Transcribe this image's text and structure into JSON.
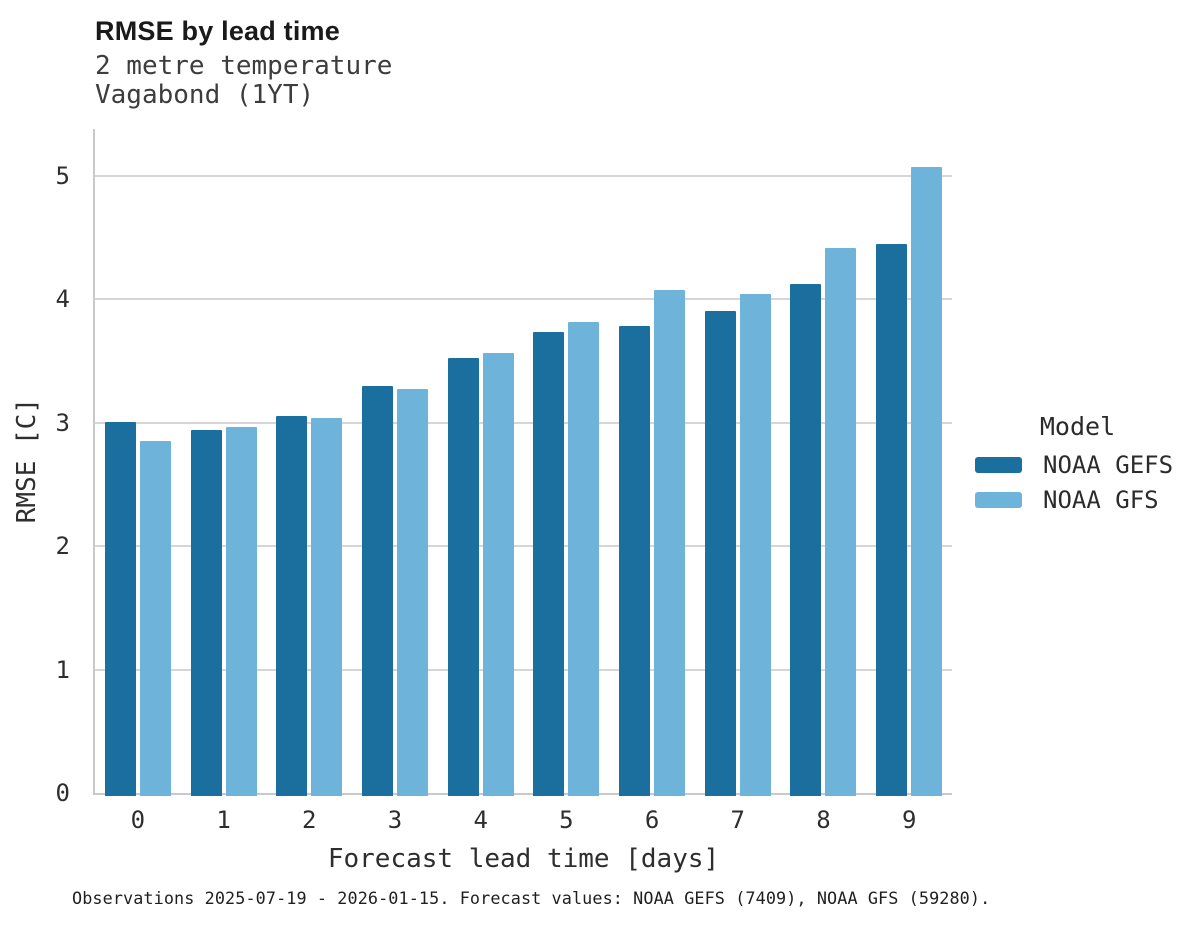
{
  "header": {
    "title": "RMSE by lead time",
    "subtitle_line1": "2 metre temperature",
    "subtitle_line2": "Vagabond (1YT)"
  },
  "chart_data": {
    "type": "bar",
    "title": "RMSE by lead time",
    "subtitle": [
      "2 metre temperature",
      "Vagabond (1YT)"
    ],
    "xlabel": "Forecast lead time [days]",
    "ylabel": "RMSE [C]",
    "categories": [
      "0",
      "1",
      "2",
      "3",
      "4",
      "5",
      "6",
      "7",
      "8",
      "9"
    ],
    "series": [
      {
        "name": "NOAA GEFS",
        "color": "#1a6f9f",
        "values": [
          3.03,
          2.97,
          3.08,
          3.32,
          3.55,
          3.76,
          3.81,
          3.93,
          4.15,
          4.47
        ]
      },
      {
        "name": "NOAA GFS",
        "color": "#6db3da",
        "values": [
          2.88,
          2.99,
          3.06,
          3.3,
          3.59,
          3.84,
          4.1,
          4.07,
          4.44,
          5.1
        ]
      }
    ],
    "ylim": [
      0,
      5.37
    ],
    "yticks": [
      "0",
      "1",
      "2",
      "3",
      "4",
      "5"
    ],
    "grid": "horizontal",
    "legend_title": "Model",
    "legend_position": "right"
  },
  "footer": {
    "caption": "Observations 2025-07-19 - 2026-01-15. Forecast values: NOAA GEFS (7409), NOAA GFS (59280)."
  }
}
